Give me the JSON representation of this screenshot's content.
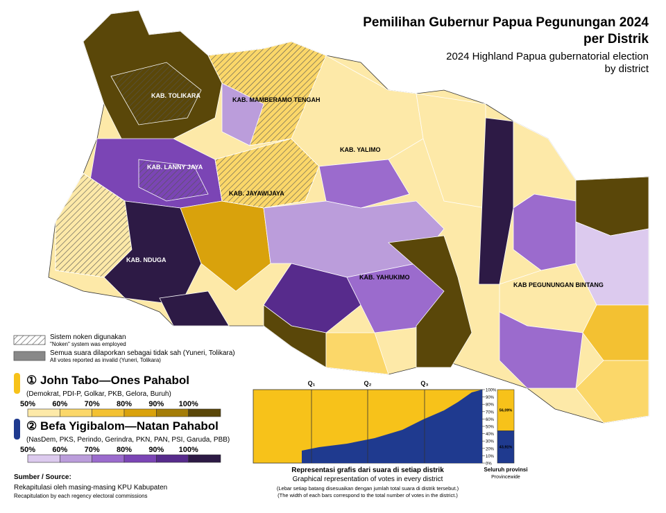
{
  "title": [
    "Pemilihan Gubernur Papua Pegunungan 2024",
    "per Distrik"
  ],
  "subtitle": [
    "2024 Highland Papua gubernatorial election",
    "by district"
  ],
  "regencies": [
    "KAB. TOLIKARA",
    "KAB. MAMBERAMO TENGAH",
    "KAB. YALIMO",
    "KAB. LANNY JAYA",
    "KAB. JAYAWIJAYA",
    "KAB. NDUGA",
    "KAB. YAHUKIMO",
    "KAB PEGUNUNGAN BINTANG"
  ],
  "legend": {
    "noken": [
      "Sistem noken digunakan",
      "\"Noken\" system was employed"
    ],
    "invalid": [
      "Semua suara dilaporkan sebagai tidak sah (Yuneri, Tolikara)",
      "All votes reported as invalid (Yuneri, Tolikara)"
    ]
  },
  "candidates": [
    {
      "name": "① John Tabo—Ones Pahabol",
      "parties": "(Demokrat, PDI-P, Golkar, PKB, Gelora, Buruh)",
      "color": "#f7c21a",
      "scale": [
        "50%",
        "60%",
        "70%",
        "80%",
        "90%",
        "100%"
      ],
      "colors": [
        "#fde9a8",
        "#fbd769",
        "#f3c132",
        "#d9a20c",
        "#a47d08",
        "#5a4709"
      ]
    },
    {
      "name": "② Befa Yigibalom—Natan Pahabol",
      "parties": "(NasDem, PKS, Perindo, Gerindra, PKN, PAN, PSI, Garuda, PBB)",
      "color": "#1f3a8f",
      "scale": [
        "50%",
        "60%",
        "70%",
        "80%",
        "90%",
        "100%"
      ],
      "colors": [
        "#dccaee",
        "#bb9ddb",
        "#9b6bcd",
        "#7b45b5",
        "#572b8c",
        "#2d1a45"
      ]
    }
  ],
  "inset": {
    "quartiles": [
      "Q₁",
      "Q₂",
      "Q₃"
    ],
    "axis": [
      {
        "value": 100,
        "label": "100%"
      },
      {
        "value": 90,
        "label": "90%"
      },
      {
        "value": 80,
        "label": "80%"
      },
      {
        "value": 70,
        "label": "70%"
      },
      {
        "value": 60,
        "label": "60%"
      },
      {
        "value": 50,
        "label": "50%"
      },
      {
        "value": 40,
        "label": "40%"
      },
      {
        "value": 30,
        "label": "30%"
      },
      {
        "value": 20,
        "label": "20%"
      },
      {
        "value": 10,
        "label": "10%"
      },
      {
        "value": 0,
        "label": "0%"
      }
    ],
    "ylim": [
      0,
      100
    ],
    "title": "Representasi grafis dari suara di setiap distrik",
    "subtitle": "Graphical representation of votes in every district",
    "notes": [
      "(Lebar setiap batang disesuaikan dengan jumlah total suara di distrik tersebut.)",
      "(The width of each bars correspond to the total number of votes in the district.)"
    ],
    "province": {
      "values": [
        56.09,
        43.91
      ],
      "value_labels": [
        "56,09%",
        "43,91%"
      ],
      "label": "Seluruh provinsi",
      "sublabel": "Provincewide"
    }
  },
  "source": {
    "heading": "Sumber / Source:",
    "lines": [
      "Rekapitulasi oleh masing-masing KPU Kabupaten",
      "Recapitulation by each regency electoral commissions"
    ]
  }
}
